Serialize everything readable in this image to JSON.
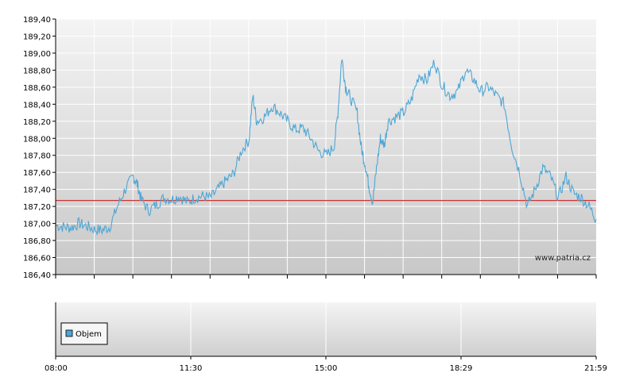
{
  "chart_data": {
    "type": "line",
    "title": "",
    "xlabel": "",
    "ylabel": "",
    "watermark": "www.patria.cz",
    "ylim": [
      186.4,
      189.4
    ],
    "y_ticks": [
      "189,40",
      "189,20",
      "189,00",
      "188,80",
      "188,60",
      "188,40",
      "188,20",
      "188,00",
      "187,80",
      "187,60",
      "187,40",
      "187,20",
      "187,00",
      "186,80",
      "186,60",
      "186,40"
    ],
    "x_ticks": [
      "08:00",
      "11:30",
      "15:00",
      "18:29",
      "21:59"
    ],
    "x_range": [
      "08:00",
      "21:59"
    ],
    "reference_line": {
      "value": 187.27,
      "color": "#cc3333"
    },
    "grid": true,
    "line_color": "#4da6d6",
    "series": [
      {
        "points": [
          [
            0,
            186.98
          ],
          [
            10,
            186.96
          ],
          [
            20,
            186.95
          ],
          [
            30,
            187.0
          ],
          [
            40,
            186.97
          ],
          [
            50,
            186.93
          ],
          [
            60,
            186.92
          ],
          [
            70,
            186.96
          ],
          [
            80,
            187.2
          ],
          [
            90,
            187.4
          ],
          [
            100,
            187.55
          ],
          [
            105,
            187.48
          ],
          [
            110,
            187.3
          ],
          [
            120,
            187.15
          ],
          [
            130,
            187.22
          ],
          [
            140,
            187.3
          ],
          [
            150,
            187.28
          ],
          [
            160,
            187.32
          ],
          [
            170,
            187.25
          ],
          [
            180,
            187.3
          ],
          [
            190,
            187.32
          ],
          [
            200,
            187.3
          ],
          [
            210,
            187.4
          ],
          [
            220,
            187.5
          ],
          [
            230,
            187.58
          ],
          [
            240,
            187.85
          ],
          [
            250,
            187.98
          ],
          [
            255,
            188.5
          ],
          [
            260,
            188.2
          ],
          [
            270,
            188.25
          ],
          [
            280,
            188.38
          ],
          [
            290,
            188.3
          ],
          [
            300,
            188.2
          ],
          [
            310,
            188.1
          ],
          [
            320,
            188.12
          ],
          [
            330,
            188.0
          ],
          [
            340,
            187.85
          ],
          [
            350,
            187.8
          ],
          [
            360,
            187.9
          ],
          [
            365,
            188.3
          ],
          [
            370,
            188.95
          ],
          [
            375,
            188.6
          ],
          [
            380,
            188.5
          ],
          [
            390,
            188.3
          ],
          [
            395,
            187.9
          ],
          [
            400,
            187.7
          ],
          [
            405,
            187.45
          ],
          [
            410,
            187.25
          ],
          [
            415,
            187.65
          ],
          [
            420,
            188.0
          ],
          [
            425,
            187.92
          ],
          [
            430,
            188.2
          ],
          [
            440,
            188.25
          ],
          [
            450,
            188.3
          ],
          [
            460,
            188.45
          ],
          [
            470,
            188.75
          ],
          [
            480,
            188.68
          ],
          [
            490,
            188.9
          ],
          [
            500,
            188.62
          ],
          [
            510,
            188.5
          ],
          [
            520,
            188.55
          ],
          [
            530,
            188.8
          ],
          [
            540,
            188.7
          ],
          [
            550,
            188.55
          ],
          [
            560,
            188.6
          ],
          [
            570,
            188.5
          ],
          [
            580,
            188.4
          ],
          [
            590,
            187.9
          ],
          [
            600,
            187.6
          ],
          [
            610,
            187.2
          ],
          [
            620,
            187.4
          ],
          [
            630,
            187.65
          ],
          [
            640,
            187.55
          ],
          [
            650,
            187.3
          ],
          [
            660,
            187.55
          ],
          [
            670,
            187.35
          ],
          [
            680,
            187.3
          ],
          [
            690,
            187.2
          ],
          [
            699,
            187.05
          ]
        ]
      }
    ],
    "volume_panel": {
      "legend": [
        "Objem"
      ],
      "legend_color": "#4da6d6"
    }
  }
}
